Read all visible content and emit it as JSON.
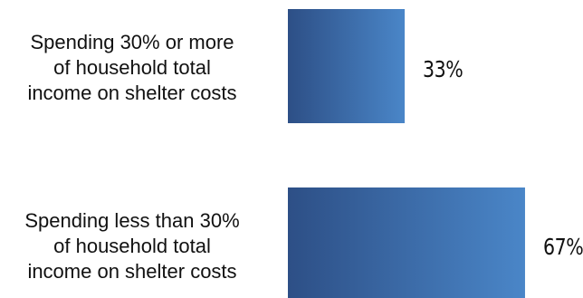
{
  "chart_data": {
    "type": "bar",
    "orientation": "horizontal",
    "categories": [
      "Spending 30% or more\nof household total\nincome on shelter costs",
      "Spending less than 30%\nof household total\nincome on shelter costs"
    ],
    "values": [
      33,
      67
    ],
    "value_labels": [
      "33%",
      "67%"
    ],
    "value_unit": "%",
    "xlim": [
      0,
      100
    ],
    "grid": false,
    "legend": "none",
    "bar_gradient": [
      "#2d4f86",
      "#4a86c8"
    ]
  }
}
